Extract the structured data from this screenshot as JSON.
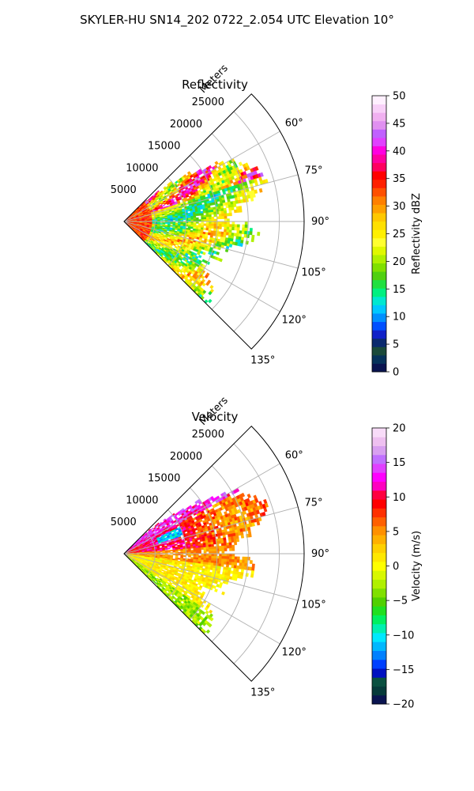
{
  "suptitle": "SKYLER-HU  SN14_202  0722_2.054 UTC Elevation 10°",
  "chart_data": [
    {
      "type": "heatmap",
      "projection": "polar-sector",
      "title": "Reflectivity",
      "range_label": "Meters",
      "theta_ticks": [
        60,
        75,
        90,
        105,
        120,
        135
      ],
      "theta_tick_labels": [
        "60°",
        "75°",
        "90°",
        "105°",
        "120°",
        "135°"
      ],
      "theta_range_deg": [
        45,
        135
      ],
      "r_ticks": [
        5000,
        10000,
        15000,
        20000,
        25000
      ],
      "r_tick_labels": [
        "5000",
        "10000",
        "15000",
        "20000",
        "25000"
      ],
      "r_max": 29000,
      "grid": true,
      "colorbar": {
        "label": "Reflectivity dBZ",
        "vmin": 0,
        "vmax": 50,
        "ticks": [
          0,
          5,
          10,
          15,
          20,
          25,
          30,
          35,
          40,
          45,
          50
        ],
        "tick_labels": [
          "0",
          "5",
          "10",
          "15",
          "20",
          "25",
          "30",
          "35",
          "40",
          "45",
          "50"
        ],
        "colors": [
          "#0a1450",
          "#06325a",
          "#1a4a3a",
          "#0b2a6e",
          "#1020c8",
          "#0050ff",
          "#0090ff",
          "#00c8ff",
          "#00e8d0",
          "#00f080",
          "#20e040",
          "#50d010",
          "#80e000",
          "#b0f000",
          "#e0f800",
          "#ffff30",
          "#fff000",
          "#ffe000",
          "#ffc800",
          "#ffa000",
          "#ff8000",
          "#ff5000",
          "#ff2000",
          "#ff0000",
          "#ff0060",
          "#ff00a0",
          "#ff00e0",
          "#e040ff",
          "#c060ff",
          "#e090f0",
          "#f0b0f0",
          "#f8d0f8",
          "#fff0ff"
        ]
      }
    },
    {
      "type": "heatmap",
      "projection": "polar-sector",
      "title": "Velocity",
      "range_label": "Meters",
      "theta_ticks": [
        60,
        75,
        90,
        105,
        120,
        135
      ],
      "theta_tick_labels": [
        "60°",
        "75°",
        "90°",
        "105°",
        "120°",
        "135°"
      ],
      "theta_range_deg": [
        45,
        135
      ],
      "r_ticks": [
        5000,
        10000,
        15000,
        20000,
        25000
      ],
      "r_tick_labels": [
        "5000",
        "10000",
        "15000",
        "20000",
        "25000"
      ],
      "r_max": 29000,
      "grid": true,
      "colorbar": {
        "label": "Velocity (m/s)",
        "vmin": -20,
        "vmax": 20,
        "ticks": [
          -20,
          -15,
          -10,
          -5,
          0,
          5,
          10,
          15,
          20
        ],
        "tick_labels": [
          "−20",
          "−15",
          "−10",
          "−5",
          "0",
          "5",
          "10",
          "15",
          "20"
        ],
        "colors": [
          "#0a1450",
          "#063a3a",
          "#0a5040",
          "#0010c0",
          "#0040ff",
          "#0080ff",
          "#00b8ff",
          "#00e8ff",
          "#00f0b0",
          "#00f060",
          "#20e020",
          "#50d000",
          "#80e000",
          "#b0f000",
          "#d8f800",
          "#ffff00",
          "#ffe800",
          "#ffd000",
          "#ffb000",
          "#ff9000",
          "#ff6000",
          "#ff3000",
          "#ff0000",
          "#ff0040",
          "#ff00c0",
          "#ff00ff",
          "#e040ff",
          "#c070ff",
          "#d8a0f0",
          "#eec0f0",
          "#f8dcf8"
        ]
      }
    }
  ]
}
